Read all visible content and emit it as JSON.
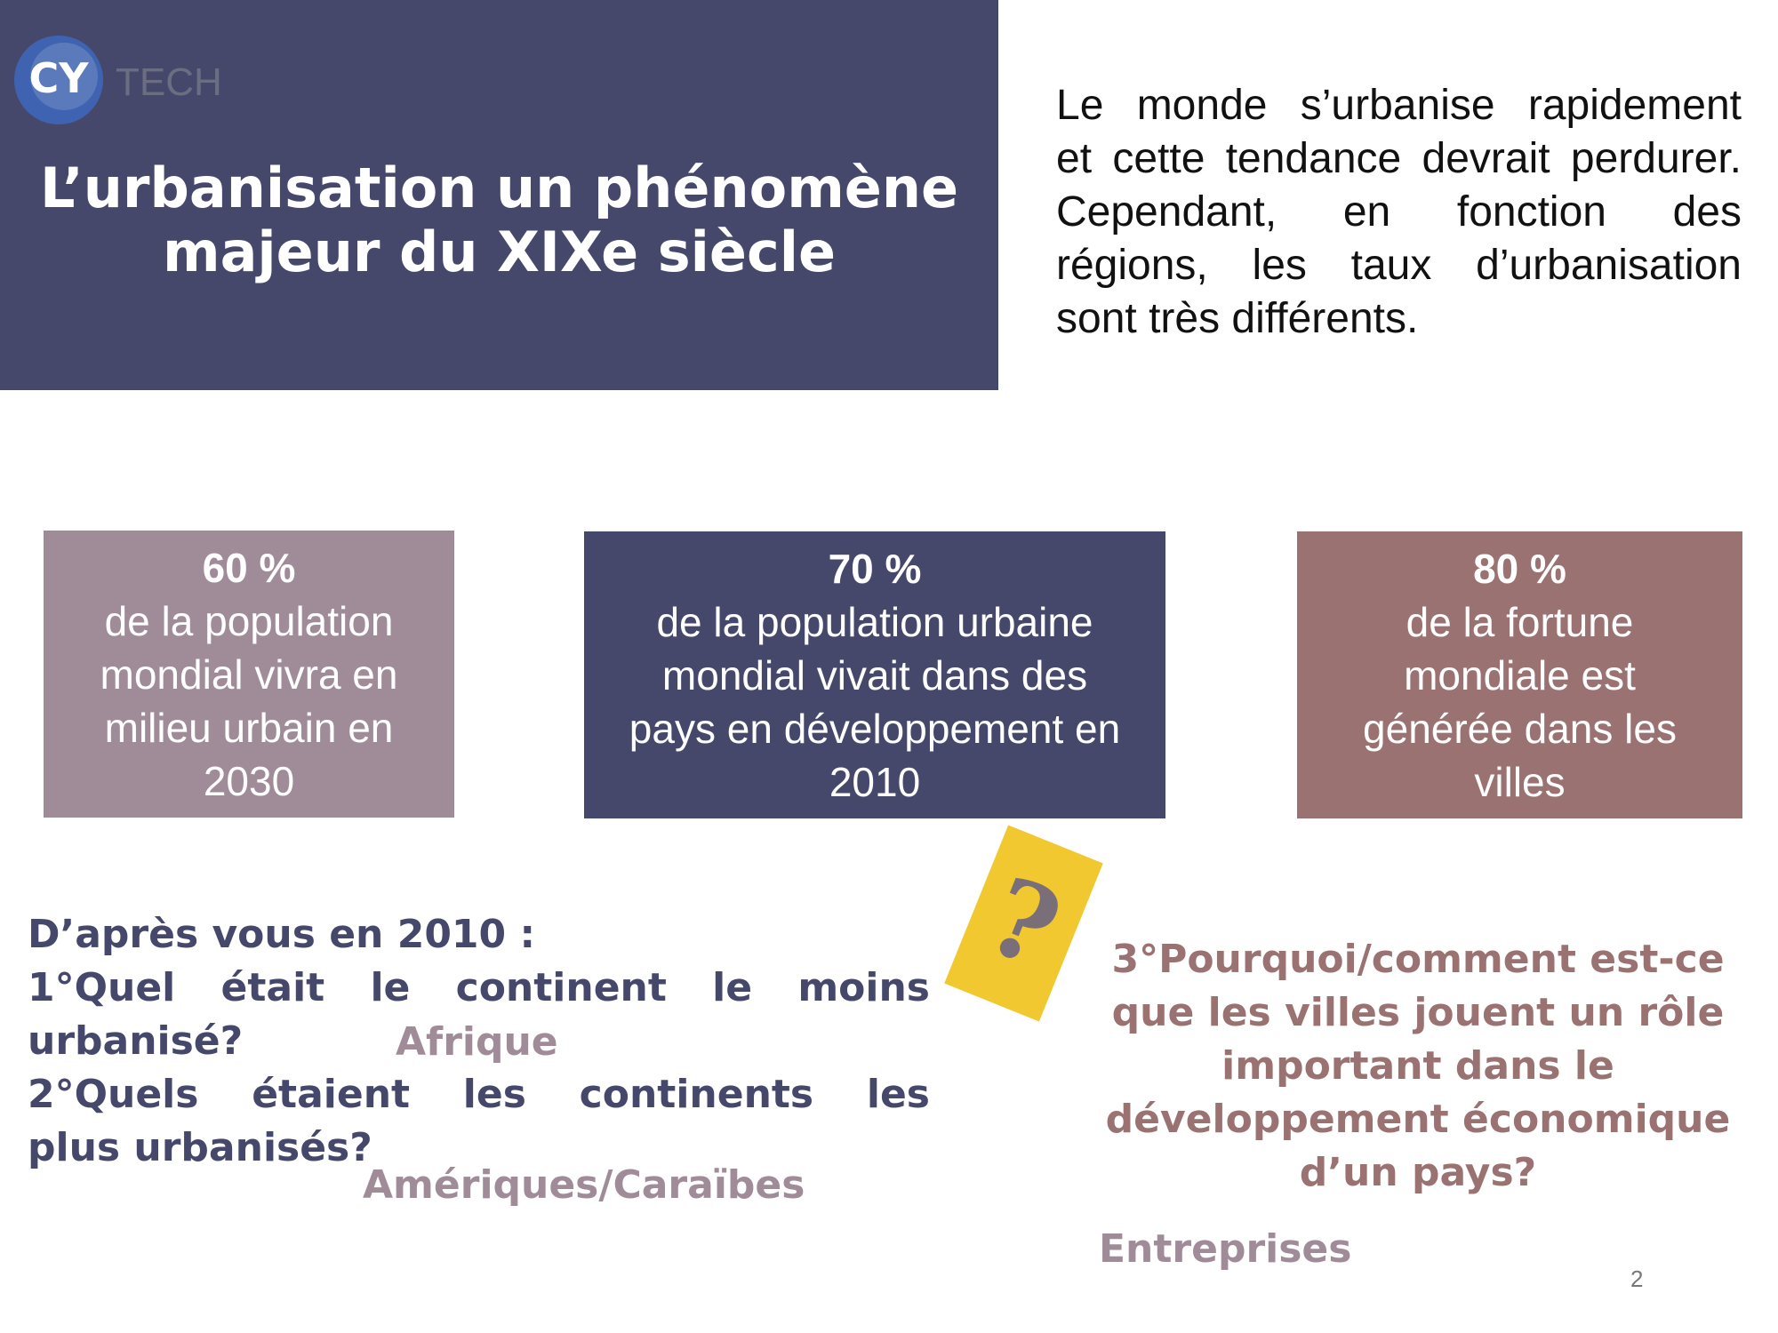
{
  "header": {
    "logo": {
      "mark": "CY",
      "text": "TECH"
    },
    "title": [
      "L’urbanisation un phénomène",
      "majeur du XIXe siècle"
    ]
  },
  "intro": [
    "Le monde s’urbanise rapidement",
    "et cette tendance devrait perdurer.",
    "Cependant, en fonction des",
    "régions, les taux d’urbanisation",
    "sont très différents."
  ],
  "stats": [
    {
      "value": "60 %",
      "lines": [
        "de la population",
        "mondial vivra en",
        "milieu urbain en",
        "2030"
      ]
    },
    {
      "value": "70 %",
      "lines": [
        "de la population urbaine",
        "mondial vivait dans des",
        "pays en développement en",
        "2010"
      ]
    },
    {
      "value": "80 %",
      "lines": [
        "de la fortune",
        "mondiale est",
        "générée dans les",
        "villes"
      ]
    }
  ],
  "questions": {
    "intro": "D’après vous en 2010 :",
    "q1": [
      "1°Quel était le continent le moins",
      "urbanisé?"
    ],
    "a1": "Afrique",
    "q2": [
      "2°Quels étaient les continents les",
      "plus urbanisés?"
    ],
    "a2": "Amériques/Caraïbes",
    "mark": "?",
    "q3": [
      "3°Pourquoi/comment est-ce",
      "que les villes jouent un rôle",
      "important dans le",
      "développement économique",
      "d’un pays?"
    ],
    "a3": "Entreprises"
  },
  "page_number": "2"
}
